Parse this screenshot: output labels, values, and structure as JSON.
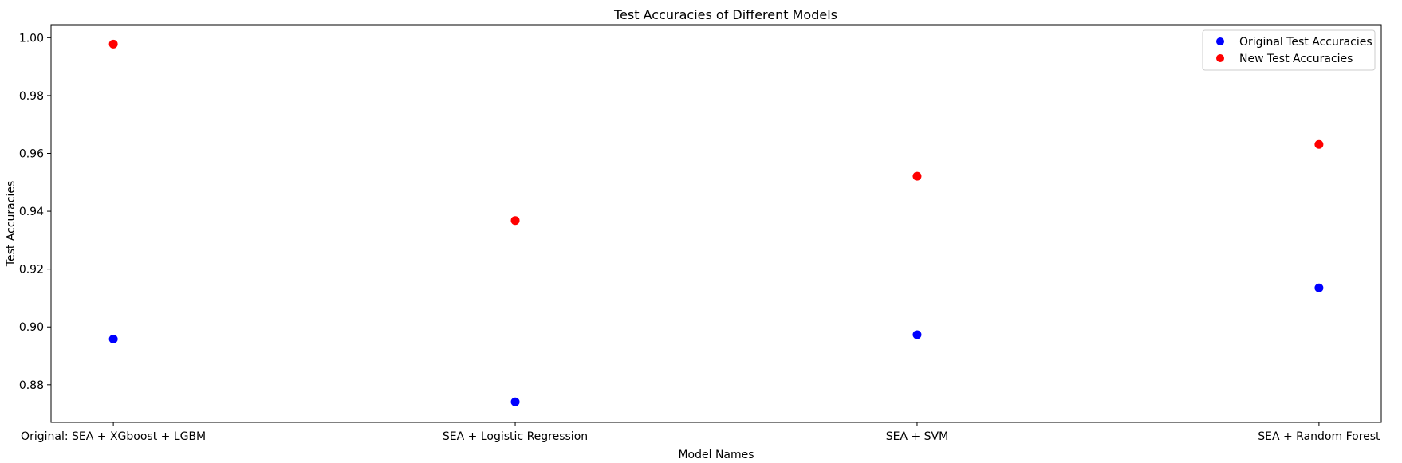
{
  "chart_data": {
    "type": "scatter",
    "title": "Test Accuracies of Different Models",
    "xlabel": "Model Names",
    "ylabel": "Test Accuracies",
    "categories": [
      "Original: SEA + XGboost + LGBM",
      "SEA + Logistic Regression",
      "SEA + SVM",
      "SEA + Random Forest"
    ],
    "ylim": [
      0.867,
      1.0045
    ],
    "yticks": [
      0.88,
      0.9,
      0.92,
      0.94,
      0.96,
      0.98,
      1.0
    ],
    "ytick_labels": [
      "0.88",
      "0.90",
      "0.92",
      "0.94",
      "0.96",
      "0.98",
      "1.00"
    ],
    "grid": false,
    "legend_position": "top-right",
    "series": [
      {
        "name": "Original Test Accuracies",
        "color": "#0000ff",
        "values": [
          0.8958,
          0.8741,
          0.8973,
          0.9135
        ]
      },
      {
        "name": "New Test Accuracies",
        "color": "#ff0000",
        "values": [
          0.9978,
          0.9368,
          0.9521,
          0.9631
        ]
      }
    ]
  }
}
